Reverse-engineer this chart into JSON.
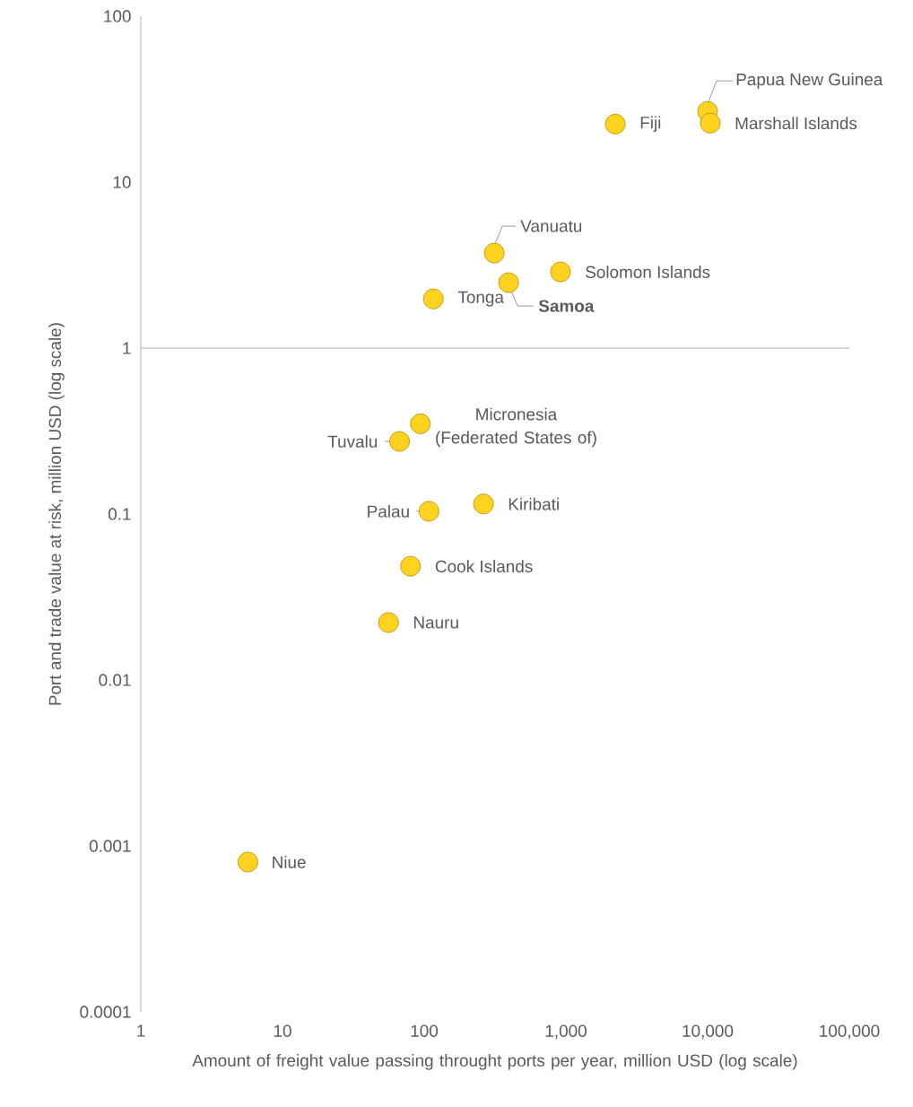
{
  "chart_data": {
    "type": "scatter",
    "xlabel": "Amount of freight value passing throught ports per year, million USD (log scale)",
    "ylabel": "Port and trade value at risk, million USD (log scale)",
    "x": [
      2230,
      10000,
      10440,
      312,
      916,
      394,
      116,
      94,
      67,
      262,
      108,
      80,
      56,
      5.7
    ],
    "values": [
      22.4,
      26.7,
      22.7,
      3.74,
      2.88,
      2.48,
      1.98,
      0.35,
      0.274,
      0.115,
      0.104,
      0.0485,
      0.0222,
      0.0008
    ],
    "colors": [
      "#ffd21f",
      "#ffd21f",
      "#ffd21f",
      "#ffd21f",
      "#ffd21f",
      "#ffd21f",
      "#ffd21f",
      "#ffd21f",
      "#ffd21f",
      "#ffd21f",
      "#ffd21f",
      "#ffd21f",
      "#ffd21f",
      "#ffd21f"
    ],
    "marker": "circle",
    "log": "xy",
    "xlim": [
      1,
      100000
    ],
    "ylim": [
      0.0001,
      100
    ],
    "xticks": [
      1,
      10,
      100,
      {
        "value": 1000,
        "label": "1,000"
      },
      {
        "value": 10000,
        "label": "10,000"
      },
      {
        "value": 100000,
        "label": "100,000"
      }
    ],
    "yticks": [
      0.0001,
      0.001,
      0.01,
      0.1,
      1,
      10,
      100
    ],
    "ref_lines": [
      {
        "axis": "y",
        "value": 1,
        "color": "#bfbfbf"
      }
    ],
    "annotations": [
      {
        "text": "Fiji",
        "x": 2230,
        "y": 22.4
      },
      {
        "text": "Papua New Guinea",
        "x": 10000,
        "y": 26.7
      },
      {
        "text": "Marshall Islands",
        "x": 10440,
        "y": 22.7
      },
      {
        "text": "Vanuatu",
        "x": 312,
        "y": 3.74
      },
      {
        "text": "Solomon Islands",
        "x": 916,
        "y": 2.88
      },
      {
        "text": "Samoa",
        "x": 394,
        "y": 2.48
      },
      {
        "text": "Tonga",
        "x": 116,
        "y": 1.98
      },
      {
        "text": "Micronesia (Federated States of)",
        "x": 94,
        "y": 0.35
      },
      {
        "text": "Tuvalu",
        "x": 67,
        "y": 0.274
      },
      {
        "text": "Kiribati",
        "x": 262,
        "y": 0.115
      },
      {
        "text": "Palau",
        "x": 108,
        "y": 0.104
      },
      {
        "text": "Cook Islands",
        "x": 80,
        "y": 0.0485
      },
      {
        "text": "Nauru",
        "x": 56,
        "y": 0.0222
      },
      {
        "text": "Niue",
        "x": 5.7,
        "y": 0.0008
      }
    ]
  }
}
